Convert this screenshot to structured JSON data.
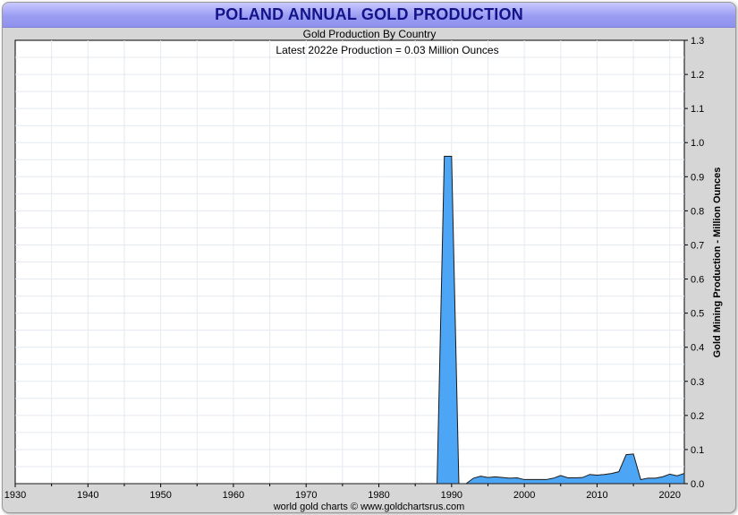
{
  "header": {
    "title": "POLAND ANNUAL GOLD PRODUCTION"
  },
  "footer": {
    "credit": "world gold charts © www.goldchartsrus.com"
  },
  "colors": {
    "fill": "#4da6f5",
    "stroke": "#1a1a1a",
    "title": "#14148a",
    "grid": "#e4eaf0"
  },
  "chart_data": {
    "type": "area",
    "title": "Gold Production By Country",
    "subtitle": "Latest 2022e Production = 0.03 Million Ounces",
    "xlabel": "",
    "ylabel": "Gold Mining Production - Million Ounces",
    "xlim": [
      1930,
      2022
    ],
    "ylim": [
      0,
      1.3
    ],
    "xticks": [
      1930,
      1940,
      1950,
      1960,
      1970,
      1980,
      1990,
      2000,
      2010,
      2020
    ],
    "yticks": [
      0.0,
      0.1,
      0.2,
      0.3,
      0.4,
      0.5,
      0.6,
      0.7,
      0.8,
      0.9,
      1.0,
      1.1,
      1.2,
      1.3
    ],
    "ytick_labels": [
      "0.0",
      "0.1",
      "0.2",
      "0.3",
      "0.4",
      "0.5",
      "0.6",
      "0.7",
      "0.8",
      "0.9",
      "1.0",
      "1.1",
      "1.2",
      "1.3"
    ],
    "grid": true,
    "legend": "none",
    "series": [
      {
        "x": [
          1930,
          1988,
          1989,
          1990,
          1991,
          1992,
          1993,
          1994,
          1995,
          1996,
          1997,
          1998,
          1999,
          2000,
          2001,
          2002,
          2003,
          2004,
          2005,
          2006,
          2007,
          2008,
          2009,
          2010,
          2011,
          2012,
          2013,
          2014,
          2015,
          2016,
          2017,
          2018,
          2019,
          2020,
          2021,
          2022
        ],
        "y": [
          0,
          0,
          0.96,
          0.96,
          0,
          0,
          0.016,
          0.022,
          0.018,
          0.02,
          0.018,
          0.016,
          0.017,
          0.012,
          0.012,
          0.012,
          0.012,
          0.016,
          0.024,
          0.017,
          0.017,
          0.018,
          0.027,
          0.025,
          0.027,
          0.03,
          0.035,
          0.085,
          0.087,
          0.012,
          0.016,
          0.016,
          0.02,
          0.028,
          0.023,
          0.03
        ]
      }
    ]
  }
}
